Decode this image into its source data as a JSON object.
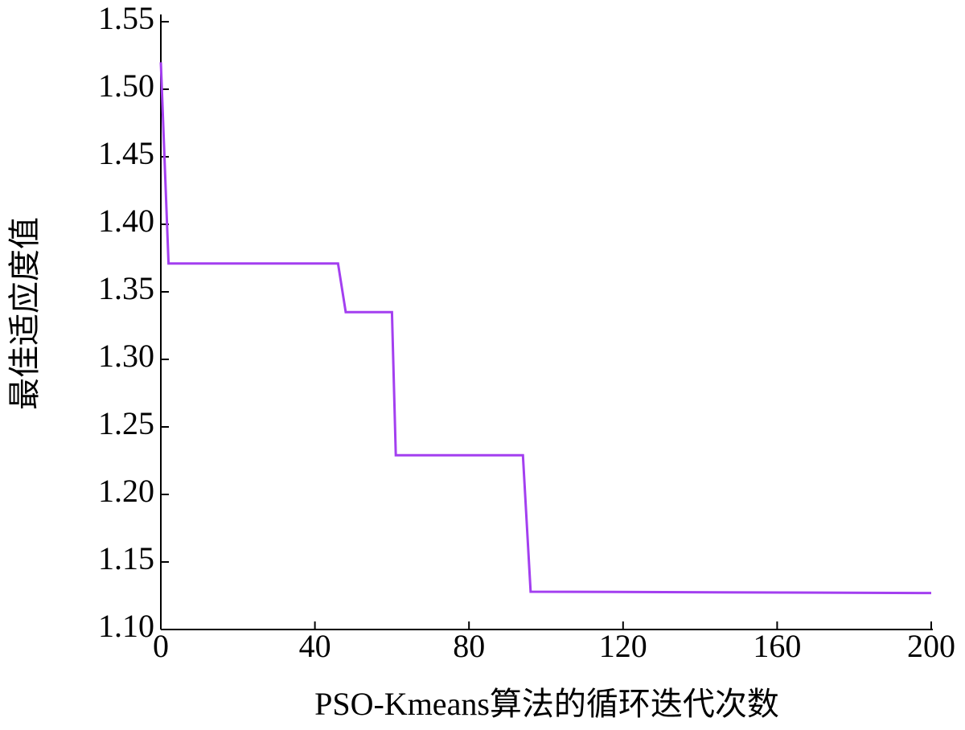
{
  "chart_data": {
    "type": "line",
    "x_label": "PSO-Kmeans算法的循环迭代次数",
    "y_label": "最佳适应度值",
    "series": [
      {
        "color": "#a33ff0",
        "x": [
          0,
          2,
          46,
          48,
          60,
          61,
          94,
          96,
          200
        ],
        "values": [
          1.52,
          1.371,
          1.371,
          1.335,
          1.335,
          1.229,
          1.229,
          1.128,
          1.127
        ]
      }
    ],
    "xlim": [
      0,
      200
    ],
    "xticks": [
      0,
      40,
      80,
      120,
      160,
      200
    ],
    "ylim": [
      1.1,
      1.55
    ],
    "yticks": [
      {
        "value": 1.1,
        "label": "1.10"
      },
      1.15,
      {
        "value": 1.2,
        "label": "1.20"
      },
      1.25,
      {
        "value": 1.3,
        "label": "1.30"
      },
      1.35,
      {
        "value": 1.4,
        "label": "1.40"
      },
      1.45,
      {
        "value": 1.5,
        "label": "1.50"
      },
      1.55
    ]
  }
}
